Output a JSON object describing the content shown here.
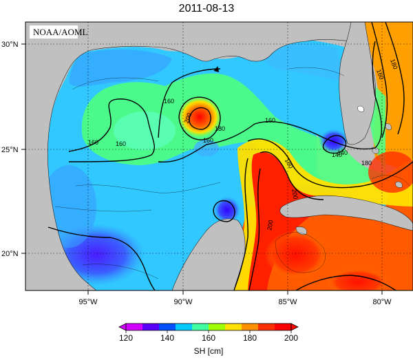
{
  "title": "2011-08-13",
  "credit": "NOAA/AOML",
  "lat_labels": [
    "30°N",
    "25°N",
    "20°N"
  ],
  "lon_labels": [
    "95°W",
    "90°W",
    "85°W",
    "80°W"
  ],
  "contour_labels": [
    "160",
    "160",
    "160",
    "180",
    "200",
    "160",
    "180",
    "200",
    "200",
    "140",
    "160",
    "180",
    "180",
    "160",
    "140"
  ],
  "colorbar": {
    "ticks": [
      "120",
      "140",
      "160",
      "180",
      "200"
    ],
    "label": "SH [cm]",
    "colors": [
      "#d200ff",
      "#5a00ff",
      "#0050ff",
      "#00c8ff",
      "#40ffa0",
      "#a0ff00",
      "#ffe000",
      "#ff9000",
      "#ff3000",
      "#ff0000"
    ]
  }
}
